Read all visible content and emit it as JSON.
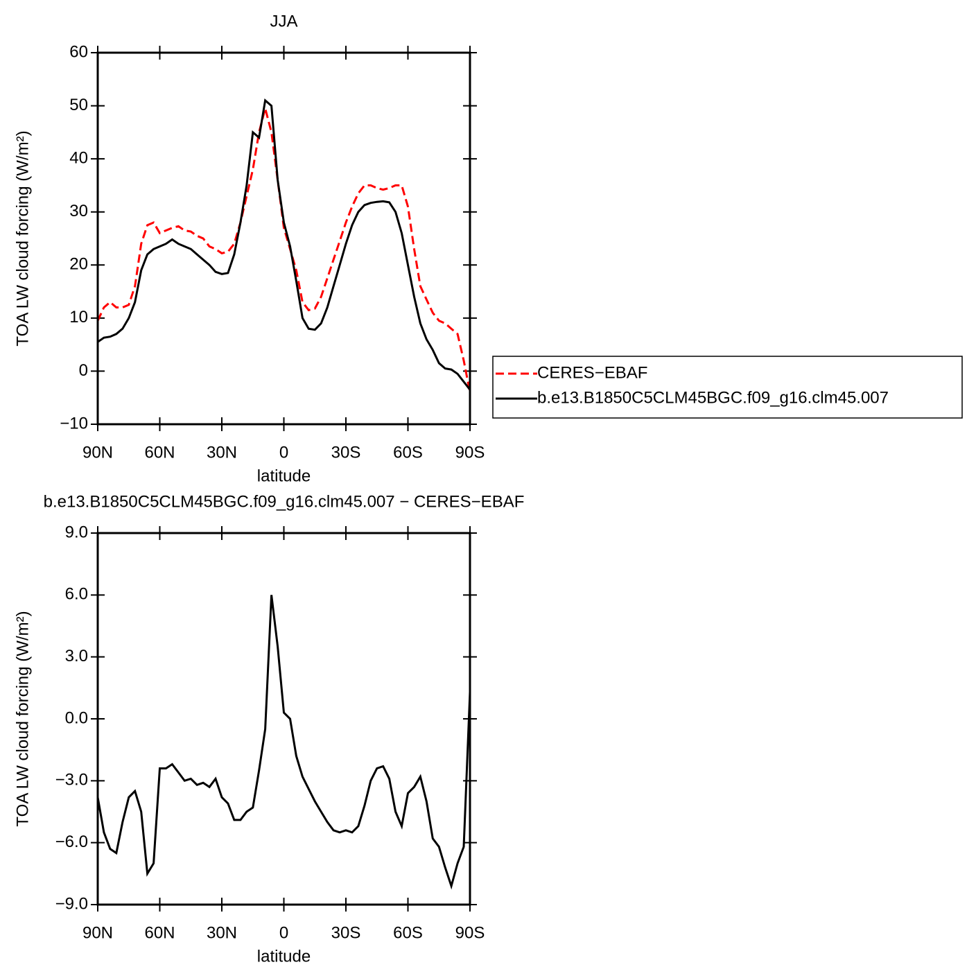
{
  "chart_data": [
    {
      "type": "line",
      "title": "JJA",
      "xlabel": "latitude",
      "ylabel": "TOA LW cloud forcing (W/m²)",
      "x": [
        90,
        87,
        84,
        81,
        78,
        75,
        72,
        69,
        66,
        63,
        60,
        57,
        54,
        51,
        48,
        45,
        42,
        39,
        36,
        33,
        30,
        27,
        24,
        21,
        18,
        15,
        12,
        9,
        6,
        3,
        0,
        -3,
        -6,
        -9,
        -12,
        -15,
        -18,
        -21,
        -24,
        -27,
        -30,
        -33,
        -36,
        -39,
        -42,
        -45,
        -48,
        -51,
        -54,
        -57,
        -60,
        -63,
        -66,
        -69,
        -72,
        -75,
        -78,
        -81,
        -84,
        -87,
        -90
      ],
      "xlim": [
        90,
        -90
      ],
      "xticks": [
        {
          "value": 90,
          "label": "90N"
        },
        {
          "value": 60,
          "label": "60N"
        },
        {
          "value": 30,
          "label": "30N"
        },
        0,
        {
          "value": -30,
          "label": "30S"
        },
        {
          "value": -60,
          "label": "60S"
        },
        {
          "value": -90,
          "label": "90S"
        }
      ],
      "ylim": [
        -10,
        60
      ],
      "yticks": [
        {
          "value": -10,
          "label": "−10"
        },
        0,
        10,
        20,
        30,
        40,
        50,
        60
      ],
      "legend": "right",
      "series": [
        {
          "name": "CERES−EBAF",
          "color": "#ff0000",
          "dashed": true,
          "values": [
            9.5,
            12,
            13,
            12,
            12,
            12.5,
            16,
            24,
            27.5,
            28,
            26,
            26.5,
            27,
            27.3,
            26.5,
            26.3,
            25.5,
            25,
            23.5,
            23,
            22.2,
            22.5,
            24,
            28,
            33,
            38,
            45,
            49.5,
            45,
            36,
            27,
            23,
            19,
            13,
            11.5,
            11.8,
            14,
            17.5,
            21,
            24.5,
            28,
            31,
            33.5,
            35,
            35,
            34.5,
            34.2,
            34.5,
            35,
            35,
            31,
            23,
            16,
            13.5,
            11,
            9.5,
            9,
            8,
            7,
            2,
            -4
          ]
        },
        {
          "name": "b.e13.B1850C5CLM45BGC.f09_g16.clm45.007",
          "color": "#000000",
          "dashed": false,
          "values": [
            5.5,
            6.3,
            6.5,
            7,
            8,
            10,
            13,
            19,
            22,
            23,
            23.5,
            24,
            24.8,
            24,
            23.5,
            23,
            22,
            21,
            20,
            18.7,
            18.3,
            18.5,
            22,
            28,
            35,
            45,
            44,
            51,
            50,
            36,
            28,
            23.5,
            17,
            10,
            8,
            7.8,
            9,
            12,
            16,
            20,
            24,
            27.5,
            30,
            31.3,
            31.7,
            31.9,
            32,
            31.8,
            30,
            26,
            20,
            14,
            9,
            6,
            4,
            1.5,
            0.5,
            0.3,
            -0.5,
            -2,
            -3.5
          ]
        }
      ]
    },
    {
      "type": "line",
      "title": "b.e13.B1850C5CLM45BGC.f09_g16.clm45.007 − CERES−EBAF",
      "xlabel": "latitude",
      "ylabel": "TOA LW cloud forcing (W/m²)",
      "x": [
        90,
        87,
        84,
        81,
        78,
        75,
        72,
        69,
        66,
        63,
        60,
        57,
        54,
        51,
        48,
        45,
        42,
        39,
        36,
        33,
        30,
        27,
        24,
        21,
        18,
        15,
        12,
        9,
        6,
        3,
        0,
        -3,
        -6,
        -9,
        -12,
        -15,
        -18,
        -21,
        -24,
        -27,
        -30,
        -33,
        -36,
        -39,
        -42,
        -45,
        -48,
        -51,
        -54,
        -57,
        -60,
        -63,
        -66,
        -69,
        -72,
        -75,
        -78,
        -81,
        -84,
        -87,
        -90
      ],
      "xlim": [
        90,
        -90
      ],
      "xticks": [
        {
          "value": 90,
          "label": "90N"
        },
        {
          "value": 60,
          "label": "60N"
        },
        {
          "value": 30,
          "label": "30N"
        },
        0,
        {
          "value": -30,
          "label": "30S"
        },
        {
          "value": -60,
          "label": "60S"
        },
        {
          "value": -90,
          "label": "90S"
        }
      ],
      "ylim": [
        -9,
        9
      ],
      "yticks": [
        {
          "value": -9,
          "label": "−9.0"
        },
        {
          "value": -6,
          "label": "−6.0"
        },
        {
          "value": -3,
          "label": "−3.0"
        },
        {
          "value": 0,
          "label": "0.0"
        },
        {
          "value": 3,
          "label": "3.0"
        },
        {
          "value": 6,
          "label": "6.0"
        },
        {
          "value": 9,
          "label": "9.0"
        }
      ],
      "series": [
        {
          "color": "#000000",
          "dashed": false,
          "values": [
            -3.8,
            -5.5,
            -6.3,
            -6.5,
            -5,
            -3.8,
            -3.5,
            -4.5,
            -7.5,
            -7,
            -2.4,
            -2.4,
            -2.2,
            -2.6,
            -3,
            -2.9,
            -3.2,
            -3.1,
            -3.3,
            -2.9,
            -3.8,
            -4.1,
            -4.9,
            -4.9,
            -4.5,
            -4.3,
            -2.5,
            -0.5,
            6,
            3.5,
            0.3,
            0,
            -1.8,
            -2.8,
            -3.4,
            -4,
            -4.5,
            -5,
            -5.4,
            -5.5,
            -5.4,
            -5.5,
            -5.2,
            -4.2,
            -3,
            -2.4,
            -2.3,
            -2.9,
            -4.5,
            -5.2,
            -3.6,
            -3.3,
            -2.8,
            -4,
            -5.8,
            -6.2,
            -7.2,
            -8.1,
            -7,
            -6.2,
            1.3
          ]
        }
      ]
    }
  ]
}
